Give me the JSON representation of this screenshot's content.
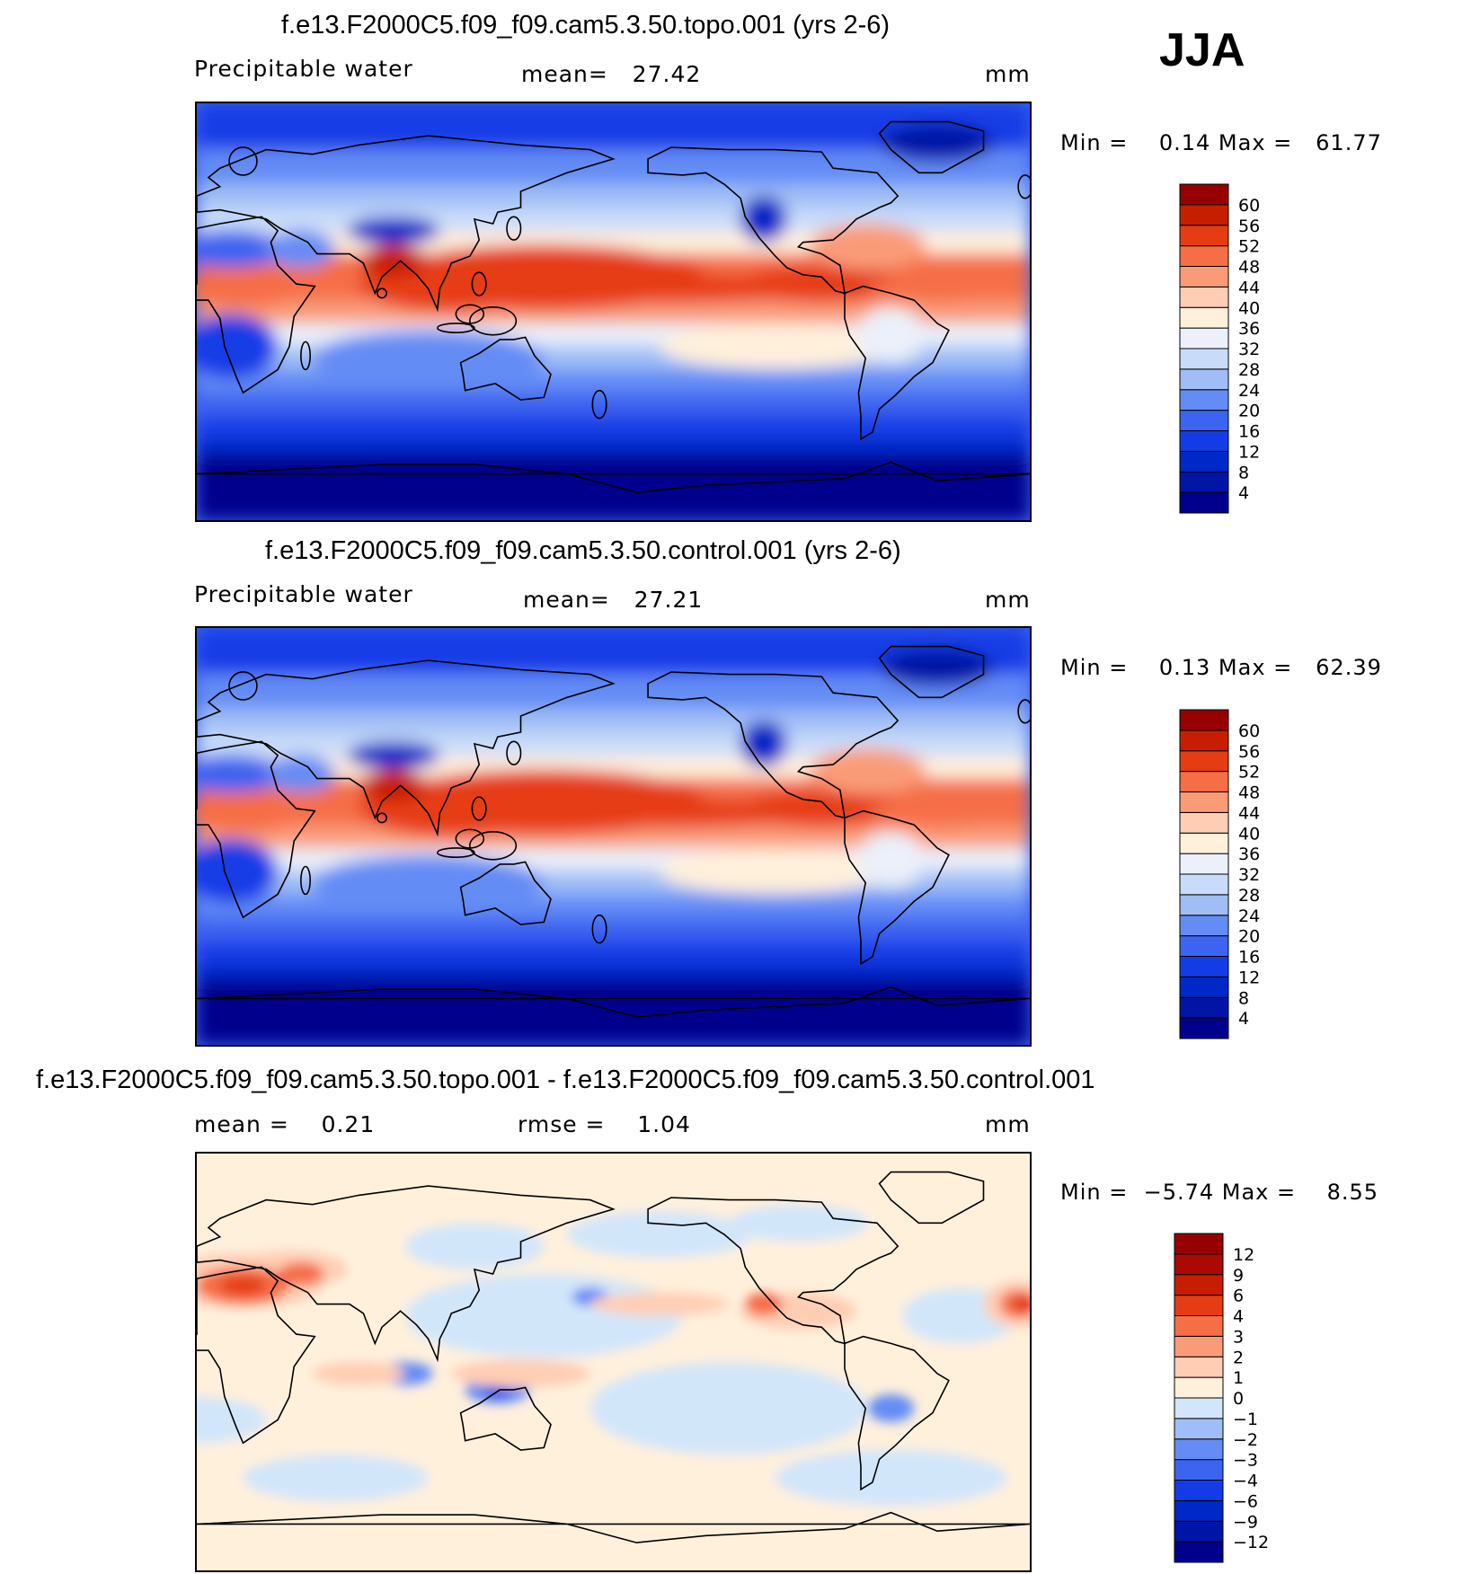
{
  "season_label": "JJA",
  "units": "mm",
  "panels": [
    {
      "id": "topo",
      "title": "f.e13.F2000C5.f09_f09.cam5.3.50.topo.001 (yrs 2-6)",
      "variable": "Precipitable water",
      "stats_text": "mean=   27.42",
      "units": "mm",
      "min_max_text": "Min =    0.14 Max =   61.77",
      "scheme": "abs"
    },
    {
      "id": "control",
      "title": "f.e13.F2000C5.f09_f09.cam5.3.50.control.001 (yrs 2-6)",
      "variable": "Precipitable water",
      "stats_text": "mean=   27.21",
      "units": "mm",
      "min_max_text": "Min =    0.13 Max =   62.39",
      "scheme": "abs"
    },
    {
      "id": "diff",
      "title": "f.e13.F2000C5.f09_f09.cam5.3.50.topo.001 - f.e13.F2000C5.f09_f09.cam5.3.50.control.001",
      "mean_text": "mean =    0.21",
      "rmse_text": "rmse =    1.04",
      "units": "mm",
      "min_max_text": "Min =  −5.74 Max =    8.55",
      "scheme": "diff"
    }
  ],
  "chart_data": [
    {
      "type": "heatmap",
      "title": "f.e13.F2000C5.f09_f09.cam5.3.50.topo.001 (yrs 2-6)",
      "variable": "Precipitable water",
      "units": "mm",
      "mean": 27.42,
      "min": 0.14,
      "max": 61.77,
      "colorbar_levels": [
        4,
        8,
        12,
        16,
        20,
        24,
        28,
        32,
        36,
        40,
        44,
        48,
        52,
        56,
        60
      ],
      "colors": [
        "#00008c",
        "#0014a5",
        "#0028c8",
        "#143ce6",
        "#3c64f0",
        "#648cf5",
        "#a0bef5",
        "#c8dcfa",
        "#ebf0fa",
        "#fff0dc",
        "#ffcdb4",
        "#fa9b78",
        "#f56e46",
        "#e63c14",
        "#c81e00",
        "#960000"
      ]
    },
    {
      "type": "heatmap",
      "title": "f.e13.F2000C5.f09_f09.cam5.3.50.control.001 (yrs 2-6)",
      "variable": "Precipitable water",
      "units": "mm",
      "mean": 27.21,
      "min": 0.13,
      "max": 62.39,
      "colorbar_levels": [
        4,
        8,
        12,
        16,
        20,
        24,
        28,
        32,
        36,
        40,
        44,
        48,
        52,
        56,
        60
      ],
      "colors": [
        "#00008c",
        "#0014a5",
        "#0028c8",
        "#143ce6",
        "#3c64f0",
        "#648cf5",
        "#a0bef5",
        "#c8dcfa",
        "#ebf0fa",
        "#fff0dc",
        "#ffcdb4",
        "#fa9b78",
        "#f56e46",
        "#e63c14",
        "#c81e00",
        "#960000"
      ]
    },
    {
      "type": "heatmap",
      "title": "f.e13.F2000C5.f09_f09.cam5.3.50.topo.001 - f.e13.F2000C5.f09_f09.cam5.3.50.control.001",
      "units": "mm",
      "mean": 0.21,
      "rmse": 1.04,
      "min": -5.74,
      "max": 8.55,
      "colorbar_levels": [
        -12,
        -9,
        -6,
        -4,
        -3,
        -2,
        -1,
        0,
        1,
        2,
        3,
        4,
        6,
        9,
        12
      ],
      "colorbar_labels": [
        "−12",
        "−9",
        "−6",
        "−4",
        "−3",
        "−2",
        "−1",
        "0",
        "1",
        "2",
        "3",
        "4",
        "6",
        "9",
        "12"
      ],
      "colors": [
        "#00008c",
        "#0014a5",
        "#0028c8",
        "#143ce6",
        "#3c64f0",
        "#648cf5",
        "#a0bef5",
        "#d2e6fa",
        "#fff0dc",
        "#ffcdb4",
        "#fa9b78",
        "#f56e46",
        "#e63c14",
        "#c81e00",
        "#aa0a00",
        "#960000"
      ]
    }
  ]
}
